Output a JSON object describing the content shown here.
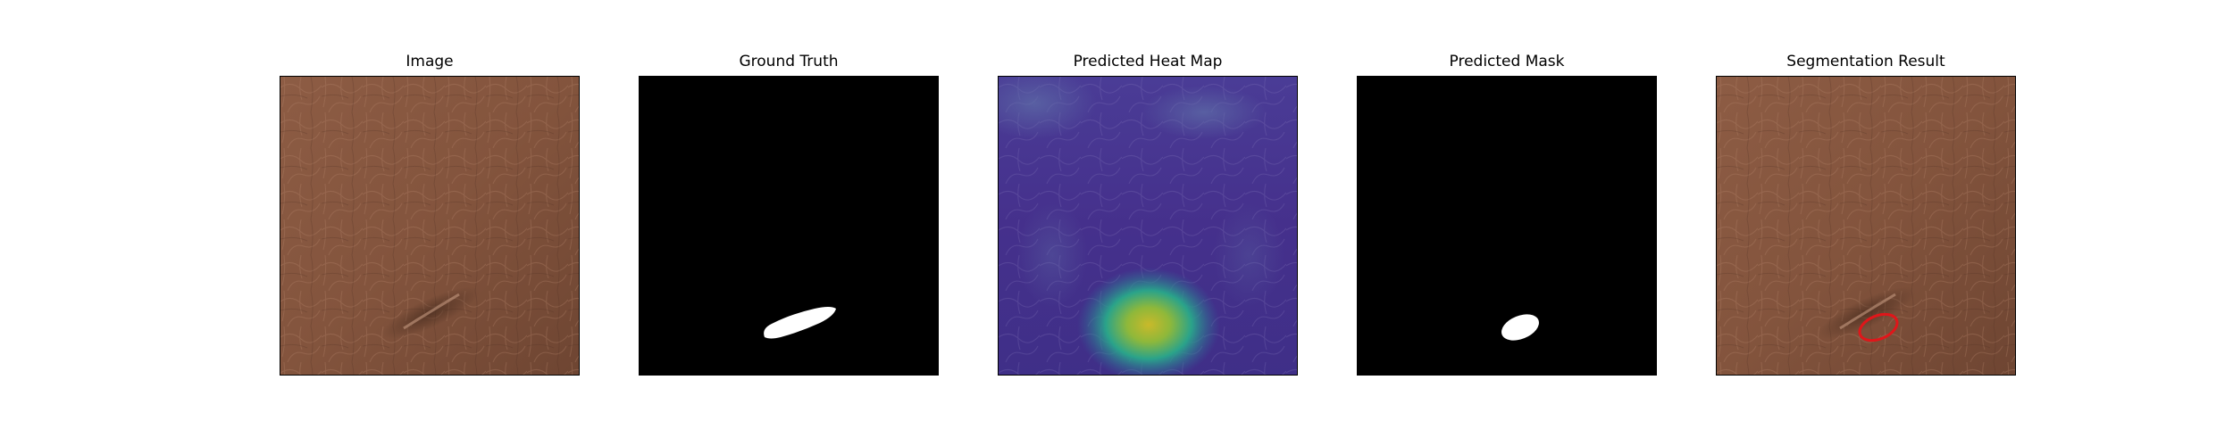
{
  "figure": {
    "panels": [
      {
        "title": "Image",
        "kind": "leather-photo"
      },
      {
        "title": "Ground Truth",
        "kind": "binary-mask"
      },
      {
        "title": "Predicted Heat Map",
        "kind": "heatmap-overlay"
      },
      {
        "title": "Predicted Mask",
        "kind": "binary-mask"
      },
      {
        "title": "Segmentation Result",
        "kind": "leather-photo-with-contour"
      }
    ],
    "colors": {
      "leather": "#8a5a42",
      "leather_dark": "#5e3a2a",
      "mask_background": "#000000",
      "mask_foreground": "#ffffff",
      "heatmap_low": "#45308c",
      "heatmap_mid": "#2aa38a",
      "heatmap_high": "#c9b92a",
      "contour": "#e0161a"
    }
  }
}
